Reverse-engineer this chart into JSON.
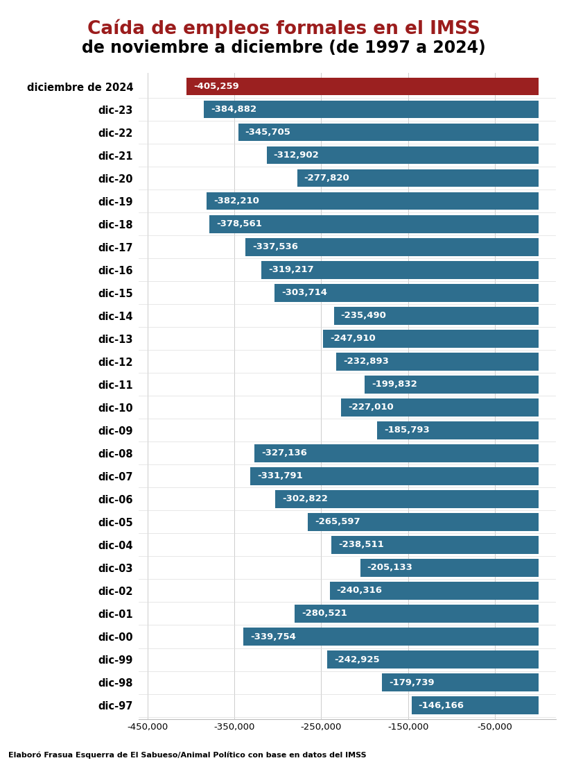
{
  "title_line1": "Caída de empleos formales en el IMSS",
  "title_line2": "de noviembre a diciembre (de 1997 a 2024)",
  "title_line1_color": "#9B1C1C",
  "title_line2_color": "#000000",
  "footnote": "Elaboró Frasua Esquerra de El Sabueso/Animal Político con base en datos del IMSS",
  "labels": [
    "diciembre de 2024",
    "dic-23",
    "dic-22",
    "dic-21",
    "dic-20",
    "dic-19",
    "dic-18",
    "dic-17",
    "dic-16",
    "dic-15",
    "dic-14",
    "dic-13",
    "dic-12",
    "dic-11",
    "dic-10",
    "dic-09",
    "dic-08",
    "dic-07",
    "dic-06",
    "dic-05",
    "dic-04",
    "dic-03",
    "dic-02",
    "dic-01",
    "dic-00",
    "dic-99",
    "dic-98",
    "dic-97"
  ],
  "values": [
    -405259,
    -384882,
    -345705,
    -312902,
    -277820,
    -382210,
    -378561,
    -337536,
    -319217,
    -303714,
    -235490,
    -247910,
    -232893,
    -199832,
    -227010,
    -185793,
    -327136,
    -331791,
    -302822,
    -265597,
    -238511,
    -205133,
    -240316,
    -280521,
    -339754,
    -242925,
    -179739,
    -146166
  ],
  "bar_colors": [
    "#9B2020",
    "#2E6E8E",
    "#2E6E8E",
    "#2E6E8E",
    "#2E6E8E",
    "#2E6E8E",
    "#2E6E8E",
    "#2E6E8E",
    "#2E6E8E",
    "#2E6E8E",
    "#2E6E8E",
    "#2E6E8E",
    "#2E6E8E",
    "#2E6E8E",
    "#2E6E8E",
    "#2E6E8E",
    "#2E6E8E",
    "#2E6E8E",
    "#2E6E8E",
    "#2E6E8E",
    "#2E6E8E",
    "#2E6E8E",
    "#2E6E8E",
    "#2E6E8E",
    "#2E6E8E",
    "#2E6E8E",
    "#2E6E8E",
    "#2E6E8E"
  ],
  "xlim": [
    -460000,
    20000
  ],
  "xtick_values": [
    -450000,
    -350000,
    -250000,
    -150000,
    -50000
  ],
  "background_color": "#FFFFFF",
  "bar_text_color": "#FFFFFF",
  "label_fontsize": 10.5,
  "value_fontsize": 9.5,
  "title1_fontsize": 19,
  "title2_fontsize": 17,
  "footnote_fontsize": 8.0
}
